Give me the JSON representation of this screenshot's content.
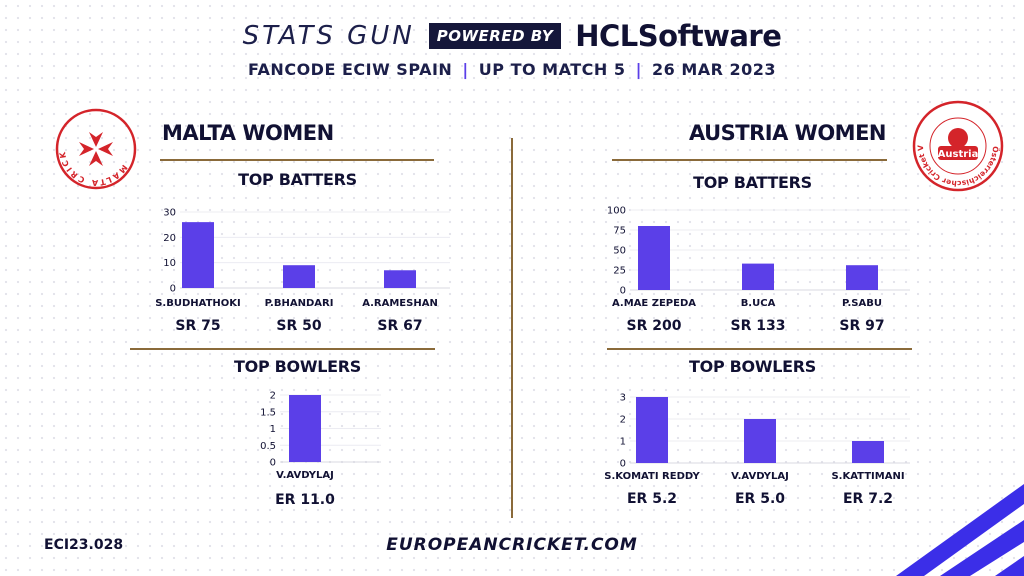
{
  "header": {
    "brand": "STATS GUN",
    "powered_by": "POWERED BY",
    "sponsor": "HCLSoftware",
    "subtitle_parts": [
      "FANCODE ECIW SPAIN",
      "UP TO MATCH  5",
      "26 MAR 2023"
    ]
  },
  "teams": [
    {
      "name": "MALTA WOMEN",
      "logo": {
        "icon": "malta-cross-logo",
        "ring_text": "MALTA CRICKET",
        "color": "#d4242a"
      },
      "batters_title": "TOP BATTERS",
      "bowlers_title": "TOP BOWLERS"
    },
    {
      "name": "AUSTRIA WOMEN",
      "logo": {
        "icon": "austria-cricket-logo",
        "ring_text": "Österreichischer Cricket Verband",
        "center_text": "Austria",
        "color": "#d4242a"
      },
      "batters_title": "TOP BATTERS",
      "bowlers_title": "TOP BOWLERS"
    }
  ],
  "chart_data": [
    {
      "type": "bar",
      "team": "MALTA WOMEN",
      "title": "TOP BATTERS",
      "categories": [
        "S.BUDHATHOKI",
        "P.BHANDARI",
        "A.RAMESHAN"
      ],
      "values": [
        26,
        9,
        7
      ],
      "ylim": [
        0,
        30
      ],
      "yticks": [
        0,
        10,
        20,
        30
      ],
      "rate_labels": [
        "SR 75",
        "SR 50",
        "SR 67"
      ],
      "bar_color": "#5b3fe8",
      "grid": false
    },
    {
      "type": "bar",
      "team": "MALTA WOMEN",
      "title": "TOP BOWLERS",
      "categories": [
        "V.AVDYLAJ"
      ],
      "values": [
        2
      ],
      "ylim": [
        0,
        2
      ],
      "yticks": [
        0,
        0.5,
        1,
        1.5,
        2
      ],
      "rate_labels": [
        "ER 11.0"
      ],
      "bar_color": "#5b3fe8",
      "grid": false
    },
    {
      "type": "bar",
      "team": "AUSTRIA WOMEN",
      "title": "TOP BATTERS",
      "categories": [
        "A.MAE ZEPEDA",
        "B.UCA",
        "P.SABU"
      ],
      "values": [
        80,
        33,
        31
      ],
      "ylim": [
        0,
        100
      ],
      "yticks": [
        0,
        25,
        50,
        75,
        100
      ],
      "rate_labels": [
        "SR 200",
        "SR 133",
        "SR 97"
      ],
      "bar_color": "#5b3fe8",
      "grid": false
    },
    {
      "type": "bar",
      "team": "AUSTRIA WOMEN",
      "title": "TOP BOWLERS",
      "categories": [
        "S.KOMATI REDDY",
        "V.AVDYLAJ",
        "S.KATTIMANI"
      ],
      "values": [
        3,
        2,
        1
      ],
      "ylim": [
        0,
        3
      ],
      "yticks": [
        0,
        1,
        2,
        3
      ],
      "rate_labels": [
        "ER 5.2",
        "ER 5.0",
        "ER 7.2"
      ],
      "bar_color": "#5b3fe8",
      "grid": false
    }
  ],
  "footer": {
    "code": "ECI23.028",
    "url": "EUROPEANCRICKET.COM"
  },
  "colors": {
    "accent": "#5b3fe8",
    "navy": "#15173a",
    "rule": "#8a6a3a",
    "logo_red": "#d4242a",
    "stripe": "#3b2ee8"
  }
}
